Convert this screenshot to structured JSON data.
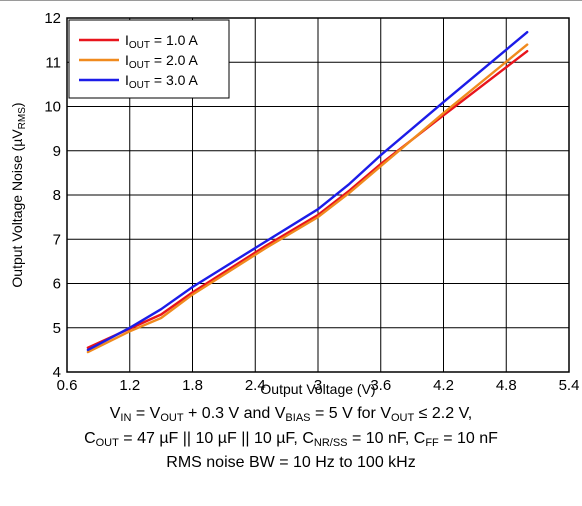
{
  "chart_data": {
    "type": "line",
    "xlabel": "Output Voltage (V)",
    "ylabel": {
      "main": "Output Voltage Noise (µV",
      "sub": "RMS",
      "close": ")"
    },
    "xlim": [
      0.6,
      5.4
    ],
    "ylim": [
      4,
      12
    ],
    "xticks": [
      "0.6",
      "1.2",
      "1.8",
      "2.4",
      "3",
      "3.6",
      "4.2",
      "4.8",
      "5.4"
    ],
    "yticks": [
      "4",
      "5",
      "6",
      "7",
      "8",
      "9",
      "10",
      "11",
      "12"
    ],
    "grid": true,
    "legend_position": "top-left",
    "series": [
      {
        "name": {
          "main": "I",
          "sub": "OUT",
          "rest": " = 1.0 A"
        },
        "color": "#e8141c",
        "x": [
          0.8,
          1.2,
          1.5,
          1.8,
          2.5,
          3.0,
          3.3,
          3.6,
          4.2,
          5.0
        ],
        "y": [
          4.55,
          4.98,
          5.3,
          5.8,
          6.85,
          7.55,
          8.1,
          8.7,
          9.8,
          11.25
        ]
      },
      {
        "name": {
          "main": "I",
          "sub": "OUT",
          "rest": " = 2.0 A"
        },
        "color": "#f08a1e",
        "x": [
          0.8,
          1.2,
          1.5,
          1.8,
          2.5,
          3.0,
          3.3,
          3.6,
          4.2,
          5.0
        ],
        "y": [
          4.45,
          4.92,
          5.22,
          5.75,
          6.8,
          7.5,
          8.05,
          8.65,
          9.85,
          11.4
        ]
      },
      {
        "name": {
          "main": "I",
          "sub": "OUT",
          "rest": " = 3.0 A"
        },
        "color": "#1c1ce8",
        "x": [
          0.8,
          1.2,
          1.5,
          1.8,
          2.5,
          3.0,
          3.3,
          3.6,
          4.2,
          5.0
        ],
        "y": [
          4.5,
          5.0,
          5.42,
          5.92,
          6.95,
          7.68,
          8.25,
          8.9,
          10.1,
          11.68
        ]
      }
    ]
  },
  "conditions": {
    "line1": {
      "a": "V",
      "a_sub": "IN",
      "b": " = V",
      "b_sub": "OUT",
      "c": " + 0.3 V and V",
      "c_sub": "BIAS",
      "d": " = 5 V for V",
      "d_sub": "OUT",
      "e": " ≤ 2.2 V,"
    },
    "line2": {
      "a": "C",
      "a_sub": "OUT",
      "b": " = 47 µF || 10 µF || 10 µF, C",
      "b_sub": "NR/SS",
      "c": " = 10 nF, C",
      "c_sub": "FF",
      "d": " = 10 nF"
    },
    "line3": "RMS noise BW = 10 Hz to 100 kHz"
  }
}
